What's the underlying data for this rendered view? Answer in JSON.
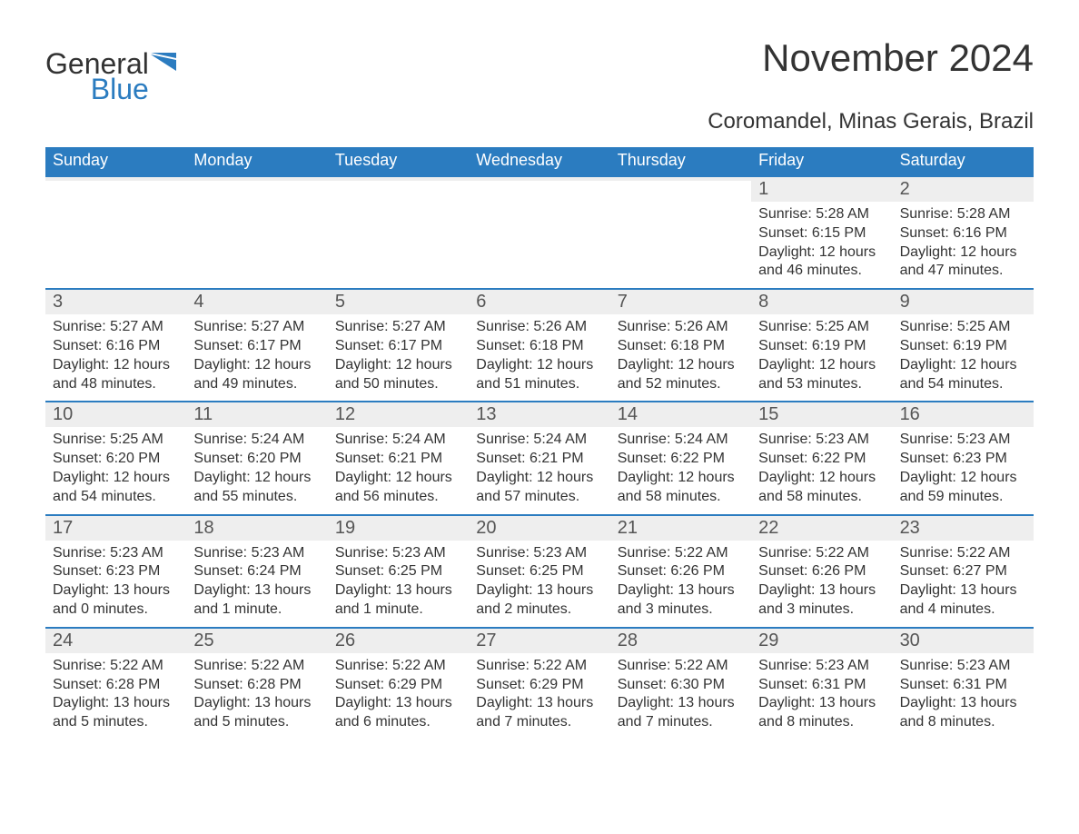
{
  "colors": {
    "header_bg": "#2b7cc0",
    "header_fg": "#ffffff",
    "daynum_bg": "#eeeeee",
    "daynum_border": "#2b7cc0",
    "text": "#333333",
    "logo_blue": "#2b7cc0",
    "page_bg": "#ffffff"
  },
  "fonts": {
    "title_size": 42,
    "subtitle_size": 24,
    "dow_size": 18,
    "daynum_size": 20,
    "body_size": 16
  },
  "logo": {
    "line1": "General",
    "line2": "Blue"
  },
  "title": "November 2024",
  "subtitle": "Coromandel, Minas Gerais, Brazil",
  "days_of_week": [
    "Sunday",
    "Monday",
    "Tuesday",
    "Wednesday",
    "Thursday",
    "Friday",
    "Saturday"
  ],
  "calendar": {
    "type": "table",
    "columns": 7,
    "weeks": [
      [
        null,
        null,
        null,
        null,
        null,
        {
          "n": "1",
          "sunrise": "Sunrise: 5:28 AM",
          "sunset": "Sunset: 6:15 PM",
          "daylight1": "Daylight: 12 hours",
          "daylight2": "and 46 minutes."
        },
        {
          "n": "2",
          "sunrise": "Sunrise: 5:28 AM",
          "sunset": "Sunset: 6:16 PM",
          "daylight1": "Daylight: 12 hours",
          "daylight2": "and 47 minutes."
        }
      ],
      [
        {
          "n": "3",
          "sunrise": "Sunrise: 5:27 AM",
          "sunset": "Sunset: 6:16 PM",
          "daylight1": "Daylight: 12 hours",
          "daylight2": "and 48 minutes."
        },
        {
          "n": "4",
          "sunrise": "Sunrise: 5:27 AM",
          "sunset": "Sunset: 6:17 PM",
          "daylight1": "Daylight: 12 hours",
          "daylight2": "and 49 minutes."
        },
        {
          "n": "5",
          "sunrise": "Sunrise: 5:27 AM",
          "sunset": "Sunset: 6:17 PM",
          "daylight1": "Daylight: 12 hours",
          "daylight2": "and 50 minutes."
        },
        {
          "n": "6",
          "sunrise": "Sunrise: 5:26 AM",
          "sunset": "Sunset: 6:18 PM",
          "daylight1": "Daylight: 12 hours",
          "daylight2": "and 51 minutes."
        },
        {
          "n": "7",
          "sunrise": "Sunrise: 5:26 AM",
          "sunset": "Sunset: 6:18 PM",
          "daylight1": "Daylight: 12 hours",
          "daylight2": "and 52 minutes."
        },
        {
          "n": "8",
          "sunrise": "Sunrise: 5:25 AM",
          "sunset": "Sunset: 6:19 PM",
          "daylight1": "Daylight: 12 hours",
          "daylight2": "and 53 minutes."
        },
        {
          "n": "9",
          "sunrise": "Sunrise: 5:25 AM",
          "sunset": "Sunset: 6:19 PM",
          "daylight1": "Daylight: 12 hours",
          "daylight2": "and 54 minutes."
        }
      ],
      [
        {
          "n": "10",
          "sunrise": "Sunrise: 5:25 AM",
          "sunset": "Sunset: 6:20 PM",
          "daylight1": "Daylight: 12 hours",
          "daylight2": "and 54 minutes."
        },
        {
          "n": "11",
          "sunrise": "Sunrise: 5:24 AM",
          "sunset": "Sunset: 6:20 PM",
          "daylight1": "Daylight: 12 hours",
          "daylight2": "and 55 minutes."
        },
        {
          "n": "12",
          "sunrise": "Sunrise: 5:24 AM",
          "sunset": "Sunset: 6:21 PM",
          "daylight1": "Daylight: 12 hours",
          "daylight2": "and 56 minutes."
        },
        {
          "n": "13",
          "sunrise": "Sunrise: 5:24 AM",
          "sunset": "Sunset: 6:21 PM",
          "daylight1": "Daylight: 12 hours",
          "daylight2": "and 57 minutes."
        },
        {
          "n": "14",
          "sunrise": "Sunrise: 5:24 AM",
          "sunset": "Sunset: 6:22 PM",
          "daylight1": "Daylight: 12 hours",
          "daylight2": "and 58 minutes."
        },
        {
          "n": "15",
          "sunrise": "Sunrise: 5:23 AM",
          "sunset": "Sunset: 6:22 PM",
          "daylight1": "Daylight: 12 hours",
          "daylight2": "and 58 minutes."
        },
        {
          "n": "16",
          "sunrise": "Sunrise: 5:23 AM",
          "sunset": "Sunset: 6:23 PM",
          "daylight1": "Daylight: 12 hours",
          "daylight2": "and 59 minutes."
        }
      ],
      [
        {
          "n": "17",
          "sunrise": "Sunrise: 5:23 AM",
          "sunset": "Sunset: 6:23 PM",
          "daylight1": "Daylight: 13 hours",
          "daylight2": "and 0 minutes."
        },
        {
          "n": "18",
          "sunrise": "Sunrise: 5:23 AM",
          "sunset": "Sunset: 6:24 PM",
          "daylight1": "Daylight: 13 hours",
          "daylight2": "and 1 minute."
        },
        {
          "n": "19",
          "sunrise": "Sunrise: 5:23 AM",
          "sunset": "Sunset: 6:25 PM",
          "daylight1": "Daylight: 13 hours",
          "daylight2": "and 1 minute."
        },
        {
          "n": "20",
          "sunrise": "Sunrise: 5:23 AM",
          "sunset": "Sunset: 6:25 PM",
          "daylight1": "Daylight: 13 hours",
          "daylight2": "and 2 minutes."
        },
        {
          "n": "21",
          "sunrise": "Sunrise: 5:22 AM",
          "sunset": "Sunset: 6:26 PM",
          "daylight1": "Daylight: 13 hours",
          "daylight2": "and 3 minutes."
        },
        {
          "n": "22",
          "sunrise": "Sunrise: 5:22 AM",
          "sunset": "Sunset: 6:26 PM",
          "daylight1": "Daylight: 13 hours",
          "daylight2": "and 3 minutes."
        },
        {
          "n": "23",
          "sunrise": "Sunrise: 5:22 AM",
          "sunset": "Sunset: 6:27 PM",
          "daylight1": "Daylight: 13 hours",
          "daylight2": "and 4 minutes."
        }
      ],
      [
        {
          "n": "24",
          "sunrise": "Sunrise: 5:22 AM",
          "sunset": "Sunset: 6:28 PM",
          "daylight1": "Daylight: 13 hours",
          "daylight2": "and 5 minutes."
        },
        {
          "n": "25",
          "sunrise": "Sunrise: 5:22 AM",
          "sunset": "Sunset: 6:28 PM",
          "daylight1": "Daylight: 13 hours",
          "daylight2": "and 5 minutes."
        },
        {
          "n": "26",
          "sunrise": "Sunrise: 5:22 AM",
          "sunset": "Sunset: 6:29 PM",
          "daylight1": "Daylight: 13 hours",
          "daylight2": "and 6 minutes."
        },
        {
          "n": "27",
          "sunrise": "Sunrise: 5:22 AM",
          "sunset": "Sunset: 6:29 PM",
          "daylight1": "Daylight: 13 hours",
          "daylight2": "and 7 minutes."
        },
        {
          "n": "28",
          "sunrise": "Sunrise: 5:22 AM",
          "sunset": "Sunset: 6:30 PM",
          "daylight1": "Daylight: 13 hours",
          "daylight2": "and 7 minutes."
        },
        {
          "n": "29",
          "sunrise": "Sunrise: 5:23 AM",
          "sunset": "Sunset: 6:31 PM",
          "daylight1": "Daylight: 13 hours",
          "daylight2": "and 8 minutes."
        },
        {
          "n": "30",
          "sunrise": "Sunrise: 5:23 AM",
          "sunset": "Sunset: 6:31 PM",
          "daylight1": "Daylight: 13 hours",
          "daylight2": "and 8 minutes."
        }
      ]
    ]
  }
}
